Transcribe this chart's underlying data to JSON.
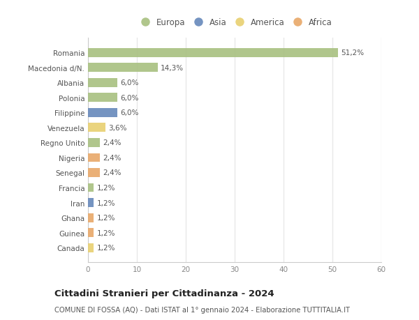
{
  "categories": [
    "Canada",
    "Guinea",
    "Ghana",
    "Iran",
    "Francia",
    "Senegal",
    "Nigeria",
    "Regno Unito",
    "Venezuela",
    "Filippine",
    "Polonia",
    "Albania",
    "Macedonia d/N.",
    "Romania"
  ],
  "values": [
    1.2,
    1.2,
    1.2,
    1.2,
    1.2,
    2.4,
    2.4,
    2.4,
    3.6,
    6.0,
    6.0,
    6.0,
    14.3,
    51.2
  ],
  "labels": [
    "1,2%",
    "1,2%",
    "1,2%",
    "1,2%",
    "1,2%",
    "2,4%",
    "2,4%",
    "2,4%",
    "3,6%",
    "6,0%",
    "6,0%",
    "6,0%",
    "14,3%",
    "51,2%"
  ],
  "continents": [
    "America",
    "Africa",
    "Africa",
    "Asia",
    "Europa",
    "Africa",
    "Africa",
    "Europa",
    "America",
    "Asia",
    "Europa",
    "Europa",
    "Europa",
    "Europa"
  ],
  "colors": {
    "Europa": "#a8c080",
    "Asia": "#6688bb",
    "America": "#e8d070",
    "Africa": "#e8a868"
  },
  "legend_order": [
    "Europa",
    "Asia",
    "America",
    "Africa"
  ],
  "legend_colors": [
    "#a8c080",
    "#6688bb",
    "#e8d070",
    "#e8a868"
  ],
  "xlim": [
    0,
    60
  ],
  "xticks": [
    0,
    10,
    20,
    30,
    40,
    50,
    60
  ],
  "title": "Cittadini Stranieri per Cittadinanza - 2024",
  "subtitle": "COMUNE DI FOSSA (AQ) - Dati ISTAT al 1° gennaio 2024 - Elaborazione TUTTITALIA.IT",
  "bg_color": "#ffffff",
  "plot_bg_color": "#ffffff",
  "grid_color": "#e8e8e8",
  "bar_height": 0.6,
  "label_fontsize": 7.5,
  "tick_fontsize": 7.5
}
